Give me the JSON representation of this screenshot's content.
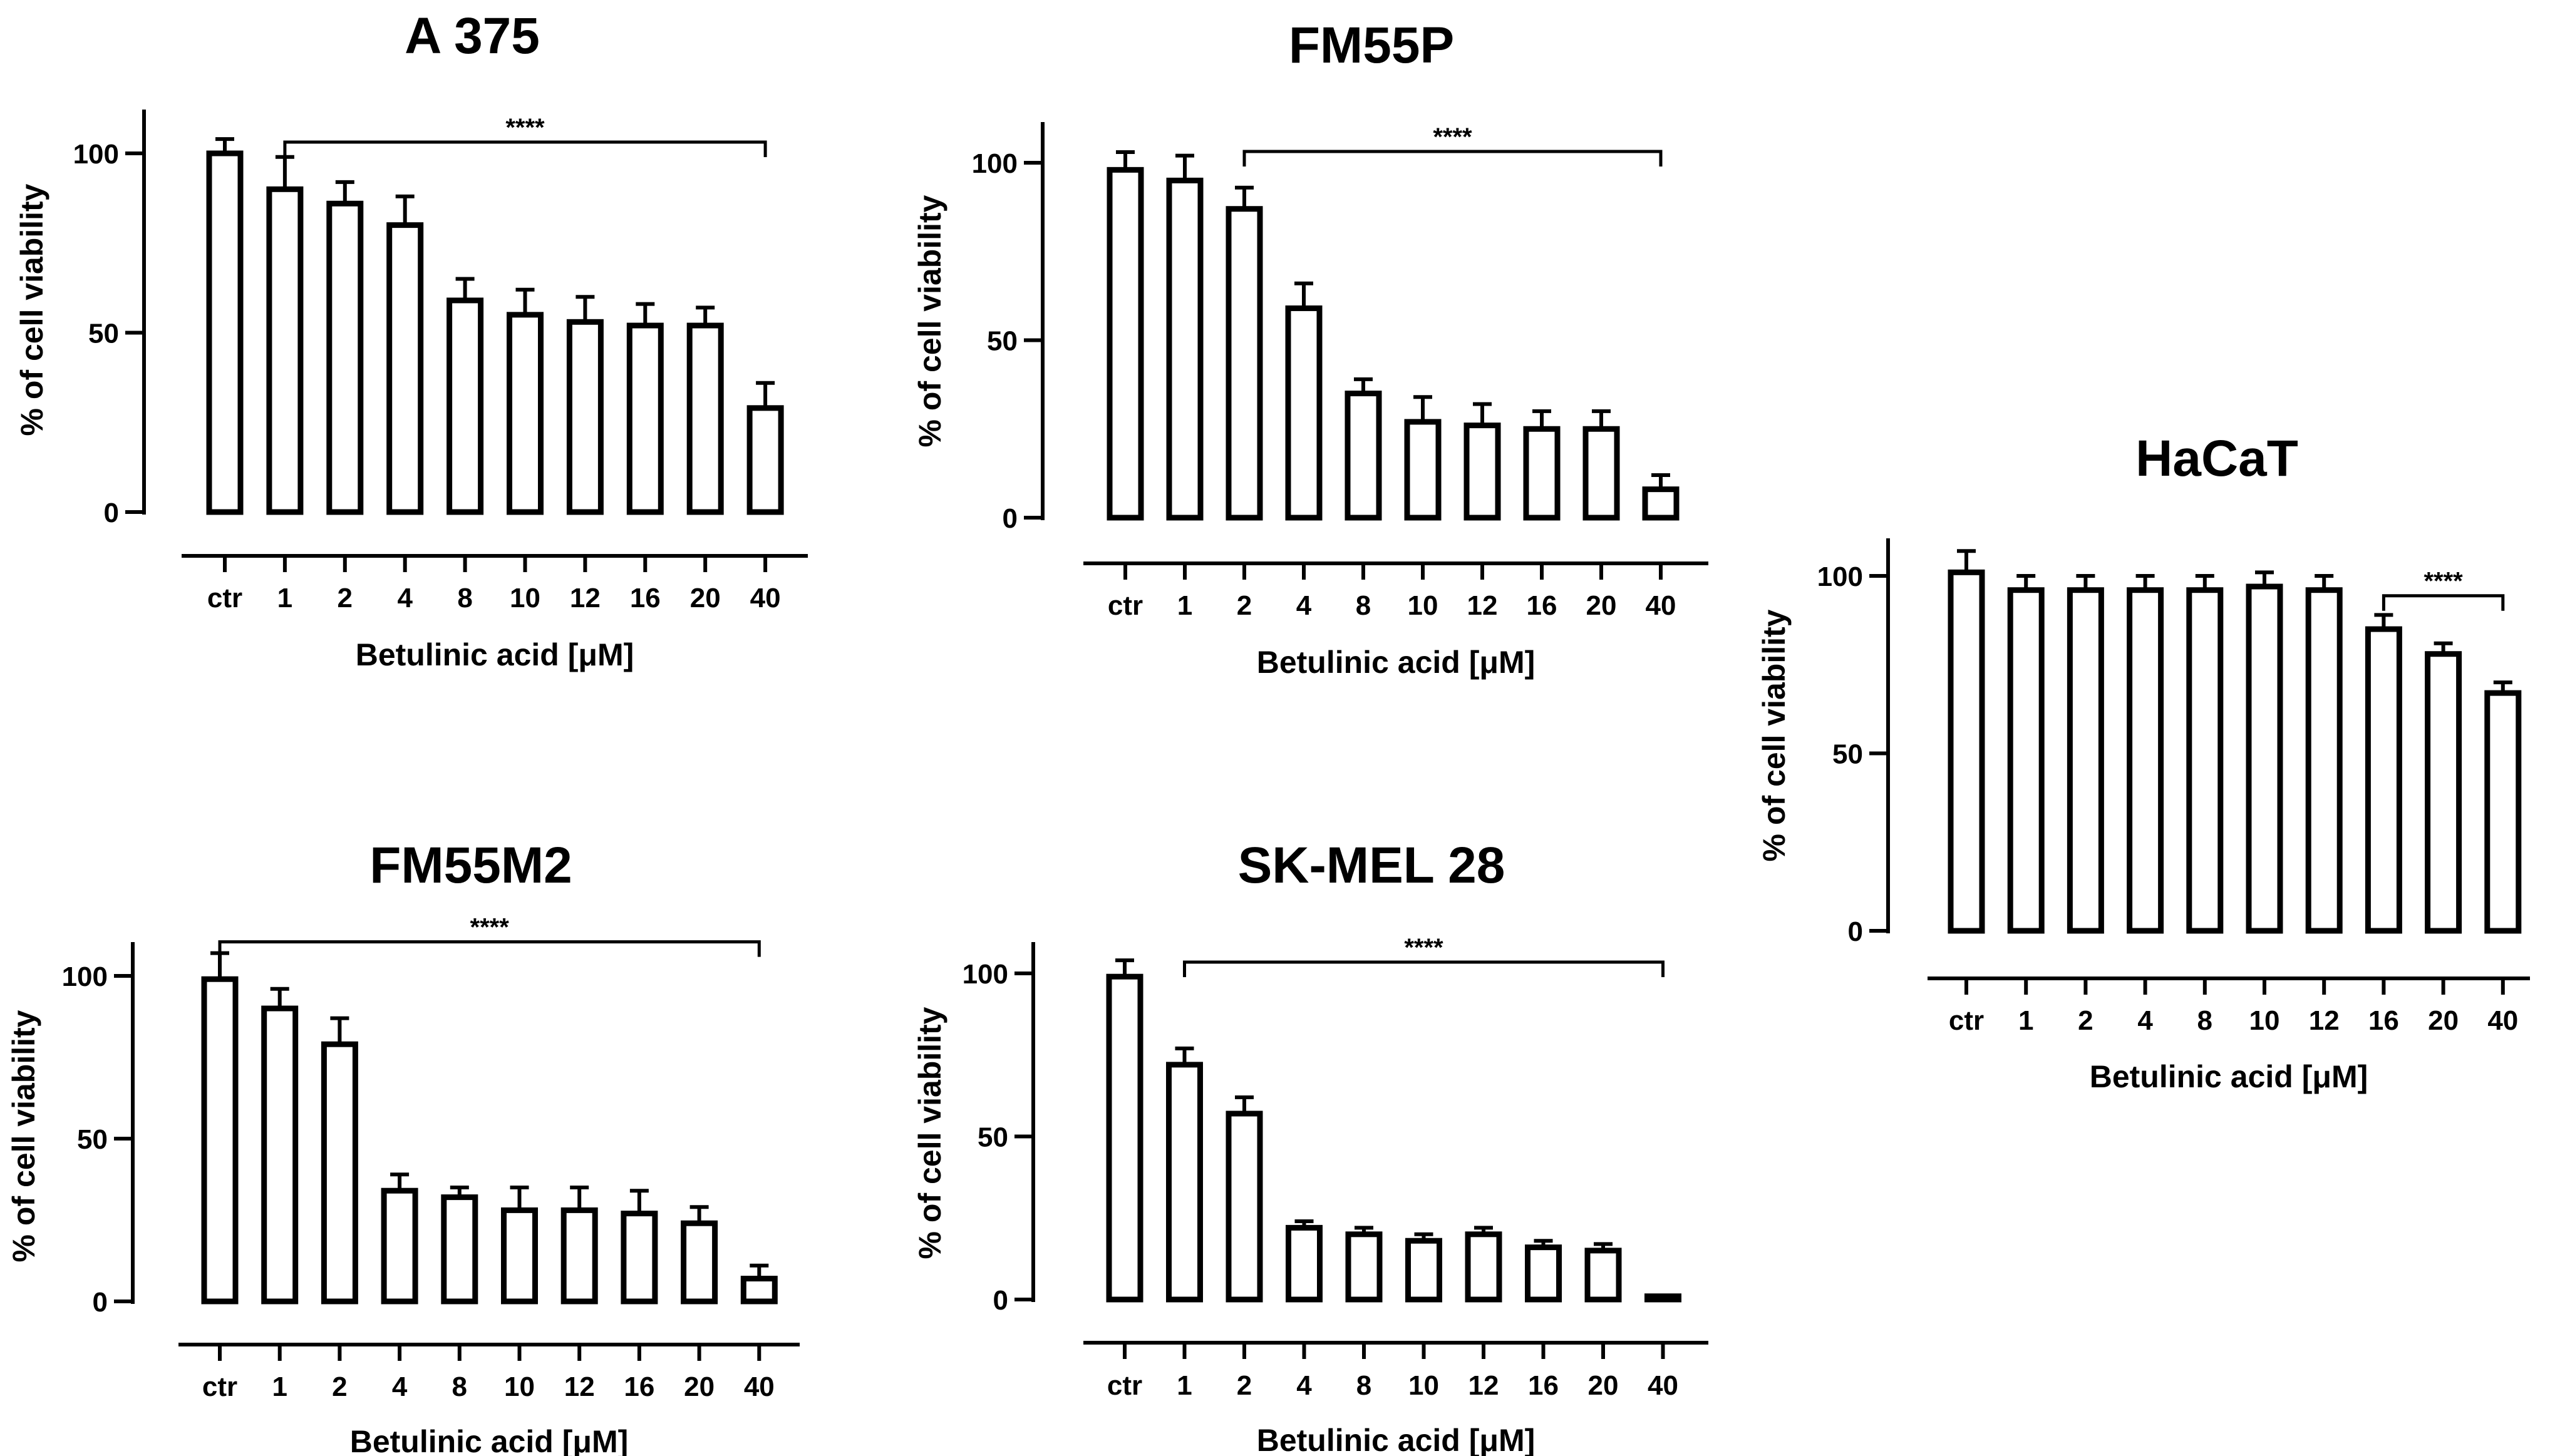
{
  "figure": {
    "x_tick_labels": [
      "ctr",
      "1",
      "2",
      "4",
      "8",
      "10",
      "12",
      "16",
      "20",
      "40"
    ]
  },
  "chart_data": [
    {
      "type": "bar",
      "title": "A 375",
      "xlabel": "Betulinic acid [μM]",
      "ylabel": "% of cell viability",
      "categories": [
        "ctr",
        "1",
        "2",
        "4",
        "8",
        "10",
        "12",
        "16",
        "20",
        "40"
      ],
      "values": [
        100,
        90,
        86,
        80,
        59,
        55,
        53,
        52,
        52,
        29
      ],
      "errors": [
        4,
        9,
        6,
        8,
        6,
        7,
        7,
        6,
        5,
        7
      ],
      "ylim": [
        0,
        100
      ],
      "yticks": [
        0,
        50,
        100
      ],
      "grid": false,
      "significance": {
        "label": "****",
        "from": "1",
        "to": "40"
      }
    },
    {
      "type": "bar",
      "title": "FM55P",
      "xlabel": "Betulinic acid [μM]",
      "ylabel": "% of cell viability",
      "categories": [
        "ctr",
        "1",
        "2",
        "4",
        "8",
        "10",
        "12",
        "16",
        "20",
        "40"
      ],
      "values": [
        98,
        95,
        87,
        59,
        35,
        27,
        26,
        25,
        25,
        8
      ],
      "errors": [
        5,
        7,
        6,
        7,
        4,
        7,
        6,
        5,
        5,
        4
      ],
      "ylim": [
        0,
        100
      ],
      "yticks": [
        0,
        50,
        100
      ],
      "grid": false,
      "significance": {
        "label": "****",
        "from": "2",
        "to": "40"
      }
    },
    {
      "type": "bar",
      "title": "HaCaT",
      "xlabel": "Betulinic acid [μM]",
      "ylabel": "% of cell viability",
      "categories": [
        "ctr",
        "1",
        "2",
        "4",
        "8",
        "10",
        "12",
        "16",
        "20",
        "40"
      ],
      "values": [
        101,
        96,
        96,
        96,
        96,
        97,
        96,
        85,
        78,
        67
      ],
      "errors": [
        6,
        4,
        4,
        4,
        4,
        4,
        4,
        4,
        3,
        3
      ],
      "ylim": [
        0,
        100
      ],
      "yticks": [
        0,
        50,
        100
      ],
      "grid": false,
      "significance": {
        "label": "****",
        "from": "16",
        "to": "40"
      }
    },
    {
      "type": "bar",
      "title": "FM55M2",
      "xlabel": "Betulinic acid [μM]",
      "ylabel": "% of cell viability",
      "categories": [
        "ctr",
        "1",
        "2",
        "4",
        "8",
        "10",
        "12",
        "16",
        "20",
        "40"
      ],
      "values": [
        99,
        90,
        79,
        34,
        32,
        28,
        28,
        27,
        24,
        7
      ],
      "errors": [
        8,
        6,
        8,
        5,
        3,
        7,
        7,
        7,
        5,
        4
      ],
      "ylim": [
        0,
        100
      ],
      "yticks": [
        0,
        50,
        100
      ],
      "grid": false,
      "significance": {
        "label": "****",
        "from": "ctr",
        "to": "40"
      }
    },
    {
      "type": "bar",
      "title": "SK-MEL 28",
      "xlabel": "Betulinic acid [μM]",
      "ylabel": "% of cell viability",
      "categories": [
        "ctr",
        "1",
        "2",
        "4",
        "8",
        "10",
        "12",
        "16",
        "20",
        "40"
      ],
      "values": [
        99,
        72,
        57,
        22,
        20,
        18,
        20,
        16,
        15,
        1
      ],
      "errors": [
        5,
        5,
        5,
        2,
        2,
        2,
        2,
        2,
        2,
        0
      ],
      "ylim": [
        0,
        100
      ],
      "yticks": [
        0,
        50,
        100
      ],
      "grid": false,
      "significance": {
        "label": "****",
        "from": "1",
        "to": "40"
      }
    }
  ]
}
